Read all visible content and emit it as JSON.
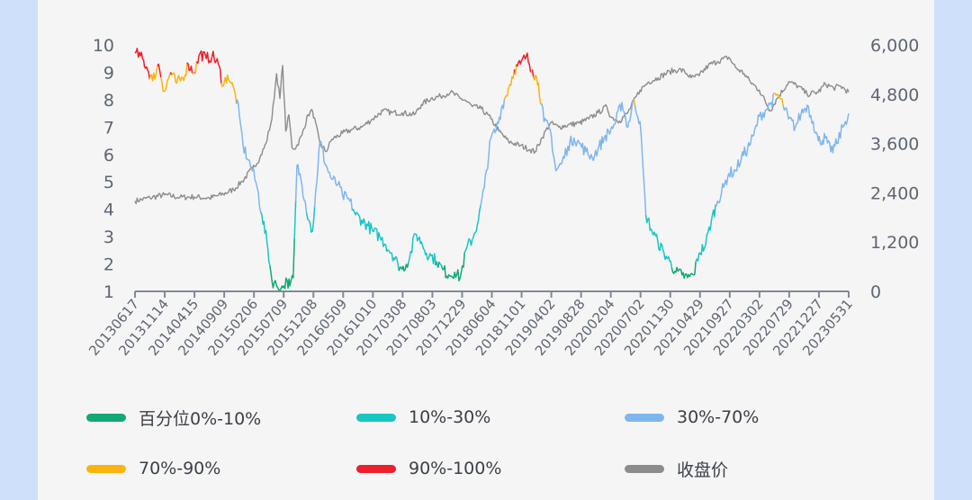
{
  "colors": {
    "band_0_10": "#14a874",
    "band_10_30": "#19c6c2",
    "band_30_70": "#7fb6ee",
    "band_70_90": "#fbb30d",
    "band_90_100": "#ee1e2a",
    "close": "#8c8c8c",
    "axis": "#808a96",
    "background": "#f5f5f6"
  },
  "chart_data": {
    "type": "line",
    "left_axis": {
      "min": 1,
      "max": 10,
      "ticks": [
        "1",
        "2",
        "3",
        "4",
        "5",
        "6",
        "7",
        "8",
        "9",
        "10"
      ]
    },
    "right_axis": {
      "min": 0,
      "max": 6000,
      "ticks": [
        "0",
        "1,200",
        "2,400",
        "3,600",
        "4,800",
        "6,000"
      ]
    },
    "x_range": [
      "2013-06-17",
      "2023-05-31"
    ],
    "x_ticks": [
      "20130617",
      "20131114",
      "20140415",
      "20140909",
      "20150206",
      "20150709",
      "20151208",
      "20160509",
      "20161010",
      "20170308",
      "20170803",
      "20171229",
      "20180604",
      "20181101",
      "20190402",
      "20190828",
      "20200204",
      "20200702",
      "20201130",
      "20210429",
      "20210927",
      "20220302",
      "20220729",
      "20221227",
      "20230531"
    ],
    "percentile_series": {
      "name": "百分位",
      "axis": "left",
      "x": [
        "2013-06-17",
        "2013-07-15",
        "2013-08-15",
        "2013-09-15",
        "2013-10-15",
        "2013-11-14",
        "2013-12-15",
        "2014-01-15",
        "2014-02-15",
        "2014-03-15",
        "2014-04-15",
        "2014-05-15",
        "2014-06-15",
        "2014-07-15",
        "2014-08-15",
        "2014-09-09",
        "2014-10-01",
        "2014-10-20",
        "2014-11-10",
        "2014-12-01",
        "2014-12-20",
        "2015-01-15",
        "2015-02-06",
        "2015-03-01",
        "2015-03-25",
        "2015-04-20",
        "2015-05-15",
        "2015-06-08",
        "2015-07-01",
        "2015-07-15",
        "2015-08-01",
        "2015-08-15",
        "2015-09-01",
        "2015-09-20",
        "2015-10-10",
        "2015-11-01",
        "2015-11-20",
        "2015-12-08",
        "2016-01-15",
        "2016-02-15",
        "2016-03-15",
        "2016-04-15",
        "2016-05-09",
        "2016-06-15",
        "2016-07-15",
        "2016-08-15",
        "2016-09-15",
        "2016-10-10",
        "2016-11-15",
        "2016-12-15",
        "2017-01-15",
        "2017-02-15",
        "2017-03-08",
        "2017-04-15",
        "2017-05-15",
        "2017-06-15",
        "2017-07-10",
        "2017-08-03",
        "2017-09-01",
        "2017-10-01",
        "2017-11-01",
        "2017-12-01",
        "2017-12-29",
        "2018-02-01",
        "2018-03-01",
        "2018-04-01",
        "2018-05-01",
        "2018-06-04",
        "2018-07-01",
        "2018-08-01",
        "2018-09-01",
        "2018-10-01",
        "2018-11-01",
        "2018-12-01",
        "2019-01-01",
        "2019-02-01",
        "2019-03-01",
        "2019-04-02",
        "2019-05-01",
        "2019-06-01",
        "2019-07-01",
        "2019-08-01",
        "2019-08-28",
        "2019-10-01",
        "2019-11-01",
        "2019-12-01",
        "2020-01-01",
        "2020-02-04",
        "2020-03-01",
        "2020-04-01",
        "2020-05-01",
        "2020-06-01",
        "2020-07-02",
        "2020-08-01",
        "2020-09-01",
        "2020-10-01",
        "2020-11-01",
        "2020-11-30",
        "2021-01-01",
        "2021-02-01",
        "2021-03-01",
        "2021-04-01",
        "2021-04-29",
        "2021-06-01",
        "2021-07-01",
        "2021-08-01",
        "2021-09-01",
        "2021-09-27",
        "2021-11-01",
        "2021-12-01",
        "2022-01-01",
        "2022-02-01",
        "2022-03-02",
        "2022-04-01",
        "2022-05-01",
        "2022-06-01",
        "2022-07-01",
        "2022-07-29",
        "2022-09-01",
        "2022-10-01",
        "2022-11-01",
        "2022-12-01",
        "2022-12-27",
        "2023-02-01",
        "2023-03-01",
        "2023-04-01",
        "2023-05-01",
        "2023-05-31"
      ],
      "values": [
        9.7,
        9.6,
        9.2,
        8.7,
        9.3,
        8.3,
        9.0,
        8.6,
        8.8,
        9.3,
        9.0,
        9.7,
        9.5,
        9.6,
        9.3,
        8.5,
        8.9,
        8.6,
        8.2,
        7.4,
        6.3,
        5.8,
        5.4,
        4.8,
        3.8,
        2.8,
        1.4,
        1.2,
        1.1,
        1.2,
        1.4,
        1.2,
        1.5,
        5.6,
        5.1,
        4.3,
        3.6,
        3.2,
        6.5,
        5.6,
        5.1,
        4.9,
        4.5,
        4.3,
        3.8,
        3.6,
        3.4,
        3.2,
        3.0,
        2.7,
        2.4,
        2.0,
        1.8,
        2.2,
        3.1,
        2.8,
        2.4,
        2.3,
        2.1,
        1.8,
        1.6,
        1.7,
        1.5,
        2.6,
        2.9,
        3.6,
        4.8,
        6.6,
        6.9,
        7.8,
        8.4,
        9.1,
        9.3,
        9.6,
        9.1,
        8.6,
        7.2,
        6.9,
        5.4,
        5.7,
        6.3,
        6.6,
        6.4,
        6.1,
        5.9,
        6.2,
        6.6,
        6.9,
        7.2,
        7.9,
        7.0,
        8.0,
        7.2,
        3.8,
        3.2,
        2.8,
        2.4,
        2.1,
        1.7,
        1.6,
        1.5,
        1.6,
        2.4,
        2.7,
        3.6,
        4.3,
        4.8,
        5.3,
        5.4,
        5.9,
        6.2,
        6.7,
        7.4,
        7.6,
        7.9,
        8.2,
        7.8,
        7.3,
        7.0,
        7.5,
        7.8,
        7.2,
        6.5,
        6.6,
        6.1,
        6.4,
        7.0,
        7.5
      ]
    },
    "close_series": {
      "name": "收盘价",
      "axis": "right",
      "x": [
        "2013-06-17",
        "2013-09-01",
        "2013-11-14",
        "2014-02-01",
        "2014-04-15",
        "2014-07-01",
        "2014-09-09",
        "2014-11-01",
        "2014-12-15",
        "2015-02-06",
        "2015-03-15",
        "2015-04-15",
        "2015-05-15",
        "2015-06-08",
        "2015-06-25",
        "2015-07-09",
        "2015-07-25",
        "2015-08-10",
        "2015-08-26",
        "2015-09-15",
        "2015-10-15",
        "2015-11-15",
        "2015-12-08",
        "2016-01-15",
        "2016-02-15",
        "2016-03-15",
        "2016-05-09",
        "2016-07-01",
        "2016-08-15",
        "2016-10-10",
        "2016-12-01",
        "2017-01-15",
        "2017-03-08",
        "2017-05-10",
        "2017-06-15",
        "2017-08-03",
        "2017-09-20",
        "2017-11-10",
        "2017-12-29",
        "2018-01-25",
        "2018-03-01",
        "2018-04-15",
        "2018-06-04",
        "2018-07-15",
        "2018-09-01",
        "2018-11-01",
        "2018-12-20",
        "2019-01-15",
        "2019-02-20",
        "2019-04-02",
        "2019-05-15",
        "2019-07-01",
        "2019-08-28",
        "2019-10-15",
        "2019-12-01",
        "2020-01-15",
        "2020-02-04",
        "2020-03-20",
        "2020-05-01",
        "2020-07-02",
        "2020-08-15",
        "2020-10-01",
        "2020-11-30",
        "2021-01-15",
        "2021-02-15",
        "2021-03-20",
        "2021-04-29",
        "2021-06-15",
        "2021-08-01",
        "2021-09-27",
        "2021-11-01",
        "2021-12-15",
        "2022-01-15",
        "2022-03-02",
        "2022-04-26",
        "2022-06-01",
        "2022-07-29",
        "2022-09-15",
        "2022-10-31",
        "2022-12-27",
        "2023-02-01",
        "2023-03-15",
        "2023-04-20",
        "2023-05-31"
      ],
      "values": [
        2200,
        2280,
        2350,
        2290,
        2300,
        2270,
        2370,
        2480,
        2680,
        3000,
        3250,
        3600,
        4200,
        5300,
        4700,
        5500,
        3900,
        4300,
        3500,
        3500,
        3800,
        4300,
        4400,
        3600,
        3400,
        3700,
        3850,
        3950,
        4000,
        4200,
        4400,
        4350,
        4350,
        4300,
        4550,
        4700,
        4750,
        4850,
        4700,
        4650,
        4500,
        4450,
        4200,
        3900,
        3650,
        3550,
        3450,
        3400,
        3750,
        4100,
        4000,
        4050,
        4100,
        4200,
        4350,
        4500,
        4250,
        4150,
        4350,
        4900,
        5100,
        5200,
        5350,
        5400,
        5350,
        5200,
        5250,
        5500,
        5600,
        5700,
        5450,
        5300,
        5100,
        4900,
        4400,
        4700,
        5100,
        5000,
        4800,
        4850,
        5050,
        4950,
        5000,
        4850
      ]
    },
    "bands": [
      {
        "label": "百分位0%-10%",
        "min_pct": 0,
        "max_pct": 10
      },
      {
        "label": "10%-30%",
        "min_pct": 10,
        "max_pct": 30
      },
      {
        "label": "30%-70%",
        "min_pct": 30,
        "max_pct": 70
      },
      {
        "label": "70%-90%",
        "min_pct": 70,
        "max_pct": 90
      },
      {
        "label": "90%-100%",
        "min_pct": 90,
        "max_pct": 100
      }
    ]
  },
  "legend": [
    {
      "label": "百分位0%-10%",
      "color_key": "band_0_10"
    },
    {
      "label": "10%-30%",
      "color_key": "band_10_30"
    },
    {
      "label": "30%-70%",
      "color_key": "band_30_70"
    },
    {
      "label": "70%-90%",
      "color_key": "band_70_90"
    },
    {
      "label": "90%-100%",
      "color_key": "band_90_100"
    },
    {
      "label": "收盘价",
      "color_key": "close"
    }
  ]
}
